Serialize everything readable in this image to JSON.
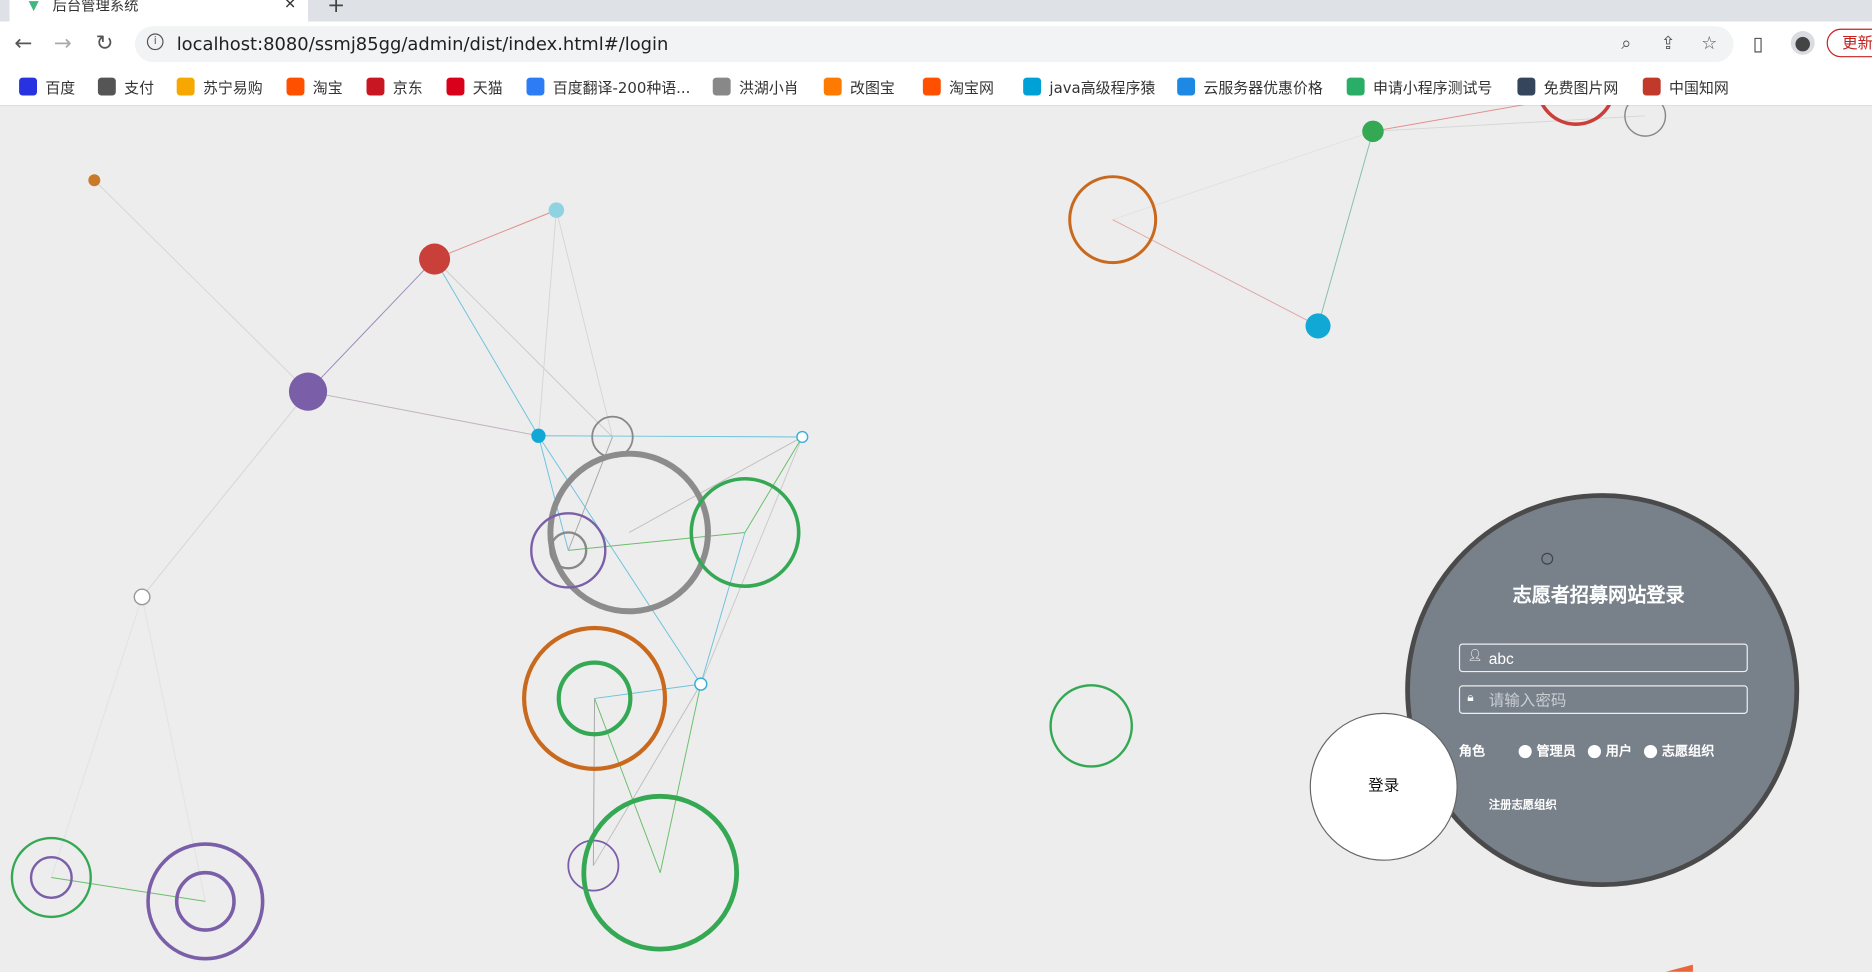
{
  "browser": {
    "tab_title": "后台管理系统",
    "url": "localhost:8080/ssmj85gg/admin/dist/index.html#/login",
    "update_label": "更新",
    "bookmarks": [
      {
        "label": "百度",
        "icon": "baidu-icon",
        "color": "#2932e1"
      },
      {
        "label": "支付",
        "icon": "globe-icon",
        "color": "#555555"
      },
      {
        "label": "苏宁易购",
        "icon": "suning-icon",
        "color": "#f7a800"
      },
      {
        "label": "淘宝",
        "icon": "taobao-icon",
        "color": "#ff5000"
      },
      {
        "label": "京东",
        "icon": "jd-icon",
        "color": "#c91623"
      },
      {
        "label": "天猫",
        "icon": "tmall-icon",
        "color": "#d8001b"
      },
      {
        "label": "百度翻译-200种语...",
        "icon": "translate-icon",
        "color": "#2d7cf6"
      },
      {
        "label": "洪湖小肖",
        "icon": "bird-icon",
        "color": "#888888"
      },
      {
        "label": "改图宝",
        "icon": "gaitubao-icon",
        "color": "#ff7a00"
      },
      {
        "label": "淘宝网",
        "icon": "taobao-icon",
        "color": "#ff5000"
      },
      {
        "label": "java高级程序猿",
        "icon": "bilibili-icon",
        "color": "#00a1d6"
      },
      {
        "label": "云服务器优惠价格",
        "icon": "cloud-icon",
        "color": "#1e88e5"
      },
      {
        "label": "申请小程序测试号",
        "icon": "wechat-icon",
        "color": "#2aae67"
      },
      {
        "label": "免费图片网",
        "icon": "tumblr-icon",
        "color": "#35465c"
      },
      {
        "label": "中国知网",
        "icon": "cnki-icon",
        "color": "#c0392b"
      }
    ]
  },
  "login": {
    "title": "志愿者招募网站登录",
    "username_value": "abc",
    "password_placeholder": "请输入密码",
    "role_label": "角色",
    "roles": [
      "管理员",
      "用户",
      "志愿组织"
    ],
    "register_link": "注册志愿组织",
    "login_button": "登录"
  }
}
